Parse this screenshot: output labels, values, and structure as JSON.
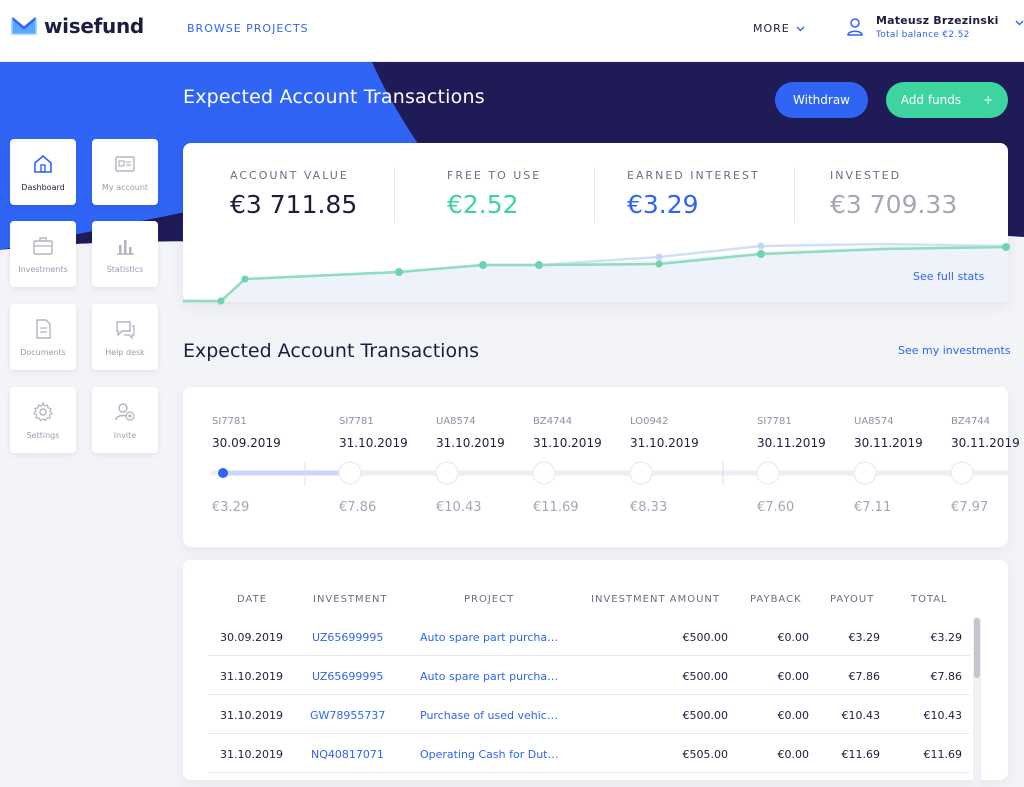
{
  "header": {
    "logo_text": "wisefund",
    "browse_label": "BROWSE PROJECTS",
    "more_label": "MORE",
    "user_name": "Mateusz Brzezinski",
    "total_balance": "Total balance €2.52"
  },
  "hero": {
    "title": "Expected Account Transactions",
    "withdraw_label": "Withdraw",
    "add_funds_label": "Add funds",
    "add_funds_plus": "+"
  },
  "sidebar": {
    "items": [
      {
        "label": "Dashboard",
        "icon": "home-icon",
        "active": true
      },
      {
        "label": "My account",
        "icon": "id-card-icon",
        "active": false
      },
      {
        "label": "Investments",
        "icon": "briefcase-icon",
        "active": false
      },
      {
        "label": "Statistics",
        "icon": "bar-chart-icon",
        "active": false
      },
      {
        "label": "Documents",
        "icon": "document-icon",
        "active": false
      },
      {
        "label": "Help desk",
        "icon": "chat-icon",
        "active": false
      },
      {
        "label": "Settings",
        "icon": "gear-icon",
        "active": false
      },
      {
        "label": "Invite",
        "icon": "add-user-icon",
        "active": false
      }
    ]
  },
  "stats": {
    "items": [
      {
        "label": "ACCOUNT VALUE",
        "value": "€3 711.85",
        "color": "#1d1e3f"
      },
      {
        "label": "FREE TO USE",
        "value": "€2.52",
        "color": "#3ed4a0"
      },
      {
        "label": "EARNED INTEREST",
        "value": "€3.29",
        "color": "#2f64f5"
      },
      {
        "label": "INVESTED",
        "value": "€3 709.33",
        "color": "#a3a6b6"
      }
    ],
    "see_full_stats": "See full stats"
  },
  "section": {
    "title": "Expected Account Transactions",
    "see_investments": "See my investments"
  },
  "timeline": {
    "items": [
      {
        "code": "SI7781",
        "date": "30.09.2019",
        "amount": "€3.29"
      },
      {
        "code": "SI7781",
        "date": "31.10.2019",
        "amount": "€7.86"
      },
      {
        "code": "UA8574",
        "date": "31.10.2019",
        "amount": "€10.43"
      },
      {
        "code": "BZ4744",
        "date": "31.10.2019",
        "amount": "€11.69"
      },
      {
        "code": "LO0942",
        "date": "31.10.2019",
        "amount": "€8.33"
      },
      {
        "code": "SI7781",
        "date": "30.11.2019",
        "amount": "€7.60"
      },
      {
        "code": "UA8574",
        "date": "30.11.2019",
        "amount": "€7.11"
      },
      {
        "code": "BZ4744",
        "date": "30.11.2019",
        "amount": "€7.97"
      }
    ]
  },
  "table": {
    "headers": [
      "DATE",
      "INVESTMENT",
      "PROJECT",
      "INVESTMENT AMOUNT",
      "PAYBACK",
      "PAYOUT",
      "TOTAL"
    ],
    "rows": [
      {
        "date": "30.09.2019",
        "investment": "UZ65699995",
        "project": "Auto spare part purcha…",
        "amount": "€500.00",
        "payback": "€0.00",
        "payout": "€3.29",
        "total": "€3.29"
      },
      {
        "date": "31.10.2019",
        "investment": "UZ65699995",
        "project": "Auto spare part purcha…",
        "amount": "€500.00",
        "payback": "€0.00",
        "payout": "€7.86",
        "total": "€7.86"
      },
      {
        "date": "31.10.2019",
        "investment": "GW78955737",
        "project": "Purchase of used vehic…",
        "amount": "€500.00",
        "payback": "€0.00",
        "payout": "€10.43",
        "total": "€10.43"
      },
      {
        "date": "31.10.2019",
        "investment": "NQ40817071",
        "project": "Operating Cash for Dut…",
        "amount": "€505.00",
        "payback": "€0.00",
        "payout": "€11.69",
        "total": "€11.69"
      }
    ]
  },
  "colors": {
    "brand_blue": "#2f64f5",
    "brand_navy": "#1d1e3f",
    "brand_green": "#3ed4a0"
  }
}
